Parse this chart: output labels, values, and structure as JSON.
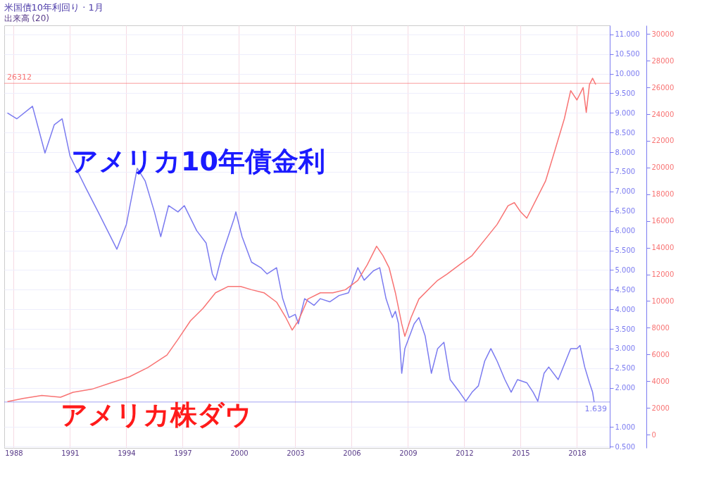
{
  "chart_data": {
    "type": "line",
    "title": "米国債10年利回り · 1月",
    "subtitle": "出来高 (20)",
    "annotations": [
      "アメリカ10年債金利",
      "アメリカ株ダウ"
    ],
    "xlim": [
      "1987-07",
      "2019-10"
    ],
    "xticks": [
      {
        "value": "1988",
        "label": "1988"
      },
      {
        "value": "1991",
        "label": "1991"
      },
      {
        "value": "1994",
        "label": "1994"
      },
      {
        "value": "1997",
        "label": "1997"
      },
      {
        "value": "2000",
        "label": "2000"
      },
      {
        "value": "2003",
        "label": "2003"
      },
      {
        "value": "2006",
        "label": "2006"
      },
      {
        "value": "2009",
        "label": "2009"
      },
      {
        "value": "2012",
        "label": "2012"
      },
      {
        "value": "2015",
        "label": "2015"
      },
      {
        "value": "2018",
        "label": "2018"
      }
    ],
    "ylim": [
      0.47,
      11.23
    ],
    "yticks": [
      {
        "value": 0.5,
        "label": "0.500"
      },
      {
        "value": 1.0,
        "label": "1.000"
      },
      {
        "value": 2.0,
        "label": "2.000"
      },
      {
        "value": 2.5,
        "label": "2.500"
      },
      {
        "value": 3.0,
        "label": "3.000"
      },
      {
        "value": 3.5,
        "label": "3.500"
      },
      {
        "value": 4.0,
        "label": "4.000"
      },
      {
        "value": 4.5,
        "label": "4.500"
      },
      {
        "value": 5.0,
        "label": "5.000"
      },
      {
        "value": 5.5,
        "label": "5.500"
      },
      {
        "value": 6.0,
        "label": "6.000"
      },
      {
        "value": 6.5,
        "label": "6.500"
      },
      {
        "value": 7.0,
        "label": "7.000"
      },
      {
        "value": 7.5,
        "label": "7.500"
      },
      {
        "value": 8.0,
        "label": "8.000"
      },
      {
        "value": 8.5,
        "label": "8.500"
      },
      {
        "value": 9.0,
        "label": "9.000"
      },
      {
        "value": 9.5,
        "label": "9.500"
      },
      {
        "value": 10.0,
        "label": "10.000"
      },
      {
        "value": 10.5,
        "label": "10.500"
      },
      {
        "value": 11.0,
        "label": "11.000"
      }
    ],
    "y2lim": [
      -1000,
      30650
    ],
    "y2ticks": [
      0,
      2000,
      4000,
      6000,
      8000,
      10000,
      12000,
      14000,
      16000,
      18000,
      20000,
      22000,
      24000,
      26000,
      28000,
      30000
    ],
    "grid": true,
    "marker": "none",
    "line_style": "solid",
    "ref_lines": [
      {
        "axis": "y",
        "value": 1.639,
        "label": "1.639",
        "color": "#7b7bf0"
      },
      {
        "axis": "y2",
        "value": 26312,
        "label": "26312",
        "color": "#f87474"
      }
    ],
    "series": [
      {
        "color": "#7b7bf0",
        "axis": "y",
        "x": [
          "1987-09",
          "1988-03",
          "1989-01",
          "1989-09",
          "1990-03",
          "1990-08",
          "1991-01",
          "1991-11",
          "1992-07",
          "1993-01",
          "1993-07",
          "1994-01",
          "1994-08",
          "1995-01",
          "1995-07",
          "1995-11",
          "1996-04",
          "1996-10",
          "1997-02",
          "1997-10",
          "1998-04",
          "1998-08",
          "1998-10",
          "1999-02",
          "1999-10",
          "1999-11",
          "2000-03",
          "2000-09",
          "2001-03",
          "2001-07",
          "2002-01",
          "2002-05",
          "2002-09",
          "2003-01",
          "2003-03",
          "2003-07",
          "2004-01",
          "2004-05",
          "2004-11",
          "2005-05",
          "2005-11",
          "2006-05",
          "2006-09",
          "2007-03",
          "2007-07",
          "2007-11",
          "2008-03",
          "2008-05",
          "2008-07",
          "2008-09",
          "2008-11",
          "2009-05",
          "2009-08",
          "2009-12",
          "2010-04",
          "2010-08",
          "2010-12",
          "2011-04",
          "2011-10",
          "2012-02",
          "2012-06",
          "2012-10",
          "2013-02",
          "2013-06",
          "2013-10",
          "2014-03",
          "2014-07",
          "2014-11",
          "2015-05",
          "2015-09",
          "2015-12",
          "2016-04",
          "2016-07",
          "2017-01",
          "2017-05",
          "2017-09",
          "2018-01",
          "2018-03",
          "2018-06",
          "2018-09",
          "2018-11",
          "2018-12"
        ],
        "values": [
          9.0,
          8.85,
          9.17,
          7.98,
          8.7,
          8.85,
          7.9,
          7.1,
          6.48,
          6.0,
          5.53,
          6.16,
          7.59,
          7.27,
          6.48,
          5.85,
          6.64,
          6.48,
          6.64,
          6.0,
          5.69,
          4.9,
          4.74,
          5.37,
          6.32,
          6.48,
          5.85,
          5.2,
          5.06,
          4.9,
          5.06,
          4.27,
          3.79,
          3.87,
          3.63,
          4.27,
          4.1,
          4.27,
          4.19,
          4.35,
          4.42,
          5.06,
          4.74,
          4.98,
          5.06,
          4.27,
          3.79,
          3.95,
          3.63,
          2.37,
          3.0,
          3.63,
          3.79,
          3.32,
          2.37,
          3.0,
          3.16,
          2.21,
          1.89,
          1.66,
          1.89,
          2.05,
          2.68,
          3.0,
          2.68,
          2.21,
          1.89,
          2.21,
          2.13,
          1.89,
          1.66,
          2.37,
          2.53,
          2.21,
          2.6,
          3.0,
          3.0,
          3.08,
          2.53,
          2.13,
          1.89,
          1.64
        ]
      },
      {
        "color": "#f87474",
        "axis": "y2",
        "x": [
          "1987-09",
          "1988-07",
          "1989-07",
          "1990-07",
          "1991-03",
          "1992-03",
          "1993-03",
          "1994-03",
          "1995-03",
          "1996-03",
          "1996-10",
          "1997-06",
          "1998-02",
          "1998-10",
          "1999-06",
          "2000-02",
          "2000-09",
          "2001-05",
          "2002-01",
          "2002-07",
          "2002-11",
          "2003-03",
          "2003-09",
          "2004-05",
          "2005-01",
          "2005-09",
          "2006-05",
          "2006-11",
          "2007-05",
          "2007-09",
          "2008-01",
          "2008-05",
          "2008-09",
          "2008-11",
          "2009-03",
          "2009-08",
          "2010-04",
          "2010-08",
          "2011-02",
          "2011-10",
          "2012-06",
          "2013-02",
          "2013-10",
          "2014-05",
          "2014-09",
          "2015-01",
          "2015-05",
          "2015-11",
          "2016-05",
          "2016-11",
          "2017-05",
          "2017-09",
          "2018-01",
          "2018-05",
          "2018-07",
          "2018-09",
          "2018-11",
          "2019-01"
        ],
        "values": [
          2470,
          2700,
          2930,
          2800,
          3170,
          3400,
          3870,
          4330,
          5030,
          5960,
          7130,
          8520,
          9460,
          10620,
          11090,
          11090,
          10850,
          10620,
          9920,
          8760,
          7830,
          8520,
          10150,
          10620,
          10620,
          10850,
          11550,
          12720,
          14110,
          13410,
          12480,
          10620,
          8290,
          7360,
          8760,
          10150,
          11090,
          11550,
          12020,
          12720,
          13410,
          14580,
          15740,
          17140,
          17370,
          16680,
          16210,
          17610,
          19000,
          21330,
          23660,
          25760,
          25060,
          25990,
          24130,
          26220,
          26690,
          26220
        ]
      }
    ]
  }
}
